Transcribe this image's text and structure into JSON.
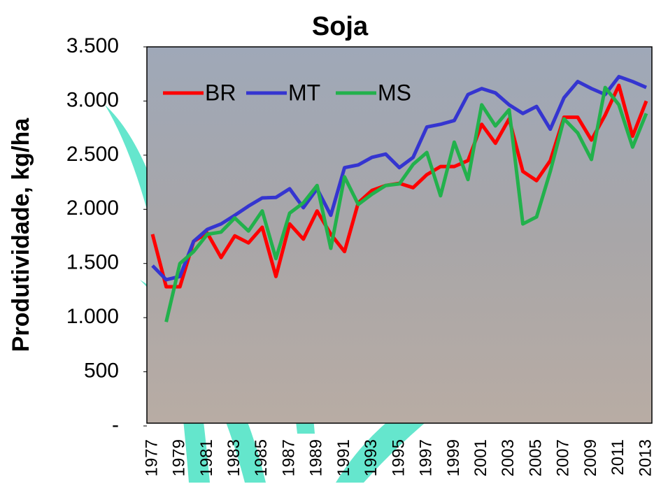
{
  "chart_data": {
    "type": "line",
    "title": "Soja",
    "y_label": "Produtividade, kg/ha",
    "categories": [
      "1977",
      null,
      "1979",
      null,
      "1981",
      null,
      "1983",
      null,
      "1985",
      null,
      "1987",
      null,
      "1989",
      null,
      "1991",
      null,
      "1993",
      null,
      "1995",
      null,
      "1997",
      null,
      "1999",
      null,
      "2001",
      null,
      "2003",
      null,
      "2005",
      null,
      "2007",
      null,
      "2009",
      null,
      "2011",
      null,
      "2013"
    ],
    "series": [
      {
        "name": "BR",
        "color": "#ff0000",
        "values": [
          1770,
          1285,
          1285,
          1705,
          1780,
          1555,
          1755,
          1690,
          1835,
          1380,
          1865,
          1725,
          1985,
          1770,
          1610,
          2060,
          2175,
          2220,
          2240,
          2200,
          2320,
          2395,
          2395,
          2450,
          2785,
          2610,
          2835,
          2350,
          2265,
          2450,
          2850,
          2850,
          2640,
          2870,
          3145,
          2675,
          3000
        ]
      },
      {
        "name": "MT",
        "color": "#3535d0",
        "values": [
          1480,
          1350,
          1380,
          1705,
          1815,
          1865,
          1945,
          2030,
          2105,
          2110,
          2190,
          2015,
          2190,
          1945,
          2385,
          2410,
          2480,
          2510,
          2385,
          2480,
          2760,
          2785,
          2820,
          3060,
          3115,
          3075,
          2965,
          2885,
          2950,
          2740,
          3030,
          3180,
          3115,
          3060,
          3225,
          3180,
          3125
        ]
      },
      {
        "name": "MS",
        "color": "#22b14c",
        "values": [
          null,
          960,
          1500,
          1610,
          1770,
          1790,
          1920,
          1800,
          1985,
          1545,
          1965,
          2060,
          2220,
          1640,
          2300,
          2045,
          2140,
          2220,
          2235,
          2415,
          2525,
          2125,
          2620,
          2275,
          2965,
          2770,
          2920,
          1865,
          1930,
          2350,
          2835,
          2705,
          2460,
          3125,
          2965,
          2575,
          2885
        ]
      }
    ],
    "ylim": [
      0,
      3500
    ],
    "yticks": [
      {
        "value": 0,
        "label": "-"
      },
      500,
      {
        "value": 1000,
        "label": "1.000"
      },
      {
        "value": 1500,
        "label": "1.500"
      },
      {
        "value": 2000,
        "label": "2.000"
      },
      {
        "value": 2500,
        "label": "2.500"
      },
      {
        "value": 3000,
        "label": "3.000"
      },
      {
        "value": 3500,
        "label": "3.500"
      }
    ]
  }
}
